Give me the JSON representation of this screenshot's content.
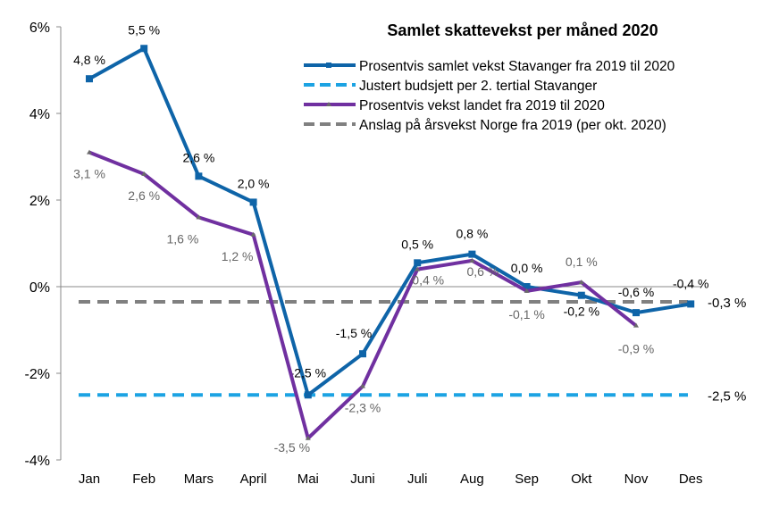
{
  "chart_data": {
    "type": "line",
    "title": "Samlet skattevekst per måned 2020",
    "categories": [
      "Jan",
      "Feb",
      "Mars",
      "April",
      "Mai",
      "Juni",
      "Juli",
      "Aug",
      "Sep",
      "Okt",
      "Nov",
      "Des"
    ],
    "ylim": [
      -4,
      6
    ],
    "yticks": [
      -4,
      -2,
      0,
      2,
      4,
      6
    ],
    "ytick_labels": [
      "-4%",
      "-2%",
      "0%",
      "2%",
      "4%",
      "6%"
    ],
    "legend_placement": "top-right",
    "grid": false,
    "series": [
      {
        "name": "Prosentvis samlet vekst Stavanger fra 2019 til 2020",
        "color": "#0E64A8",
        "style": "solid-square-markers",
        "values": [
          4.8,
          5.5,
          2.55,
          1.95,
          -2.5,
          -1.55,
          0.55,
          0.75,
          0.0,
          -0.2,
          -0.6,
          -0.4
        ],
        "labels": [
          "4,8 %",
          "5,5 %",
          "2,6 %",
          "2,0 %",
          "-2,5 %",
          "-1,5 %",
          "0,5 %",
          "0,8 %",
          "0,0 %",
          "-0,2 %",
          "-0,6 %",
          "-0,4 %"
        ]
      },
      {
        "name": "Justert budsjett per 2. tertial Stavanger",
        "color": "#1CA3E3",
        "style": "dashed",
        "constant": -2.5,
        "label": "-2,5 %"
      },
      {
        "name": "Prosentvis vekst landet fra 2019 til 2020",
        "color": "#7030A0",
        "style": "solid-triangle-markers",
        "values": [
          3.1,
          2.6,
          1.6,
          1.2,
          -3.5,
          -2.3,
          0.4,
          0.6,
          -0.1,
          0.1,
          -0.9,
          null
        ],
        "labels": [
          "3,1 %",
          "2,6 %",
          "1,6 %",
          "1,2 %",
          "-3,5 %",
          "-2,3 %",
          "0,4 %",
          "0,6 %",
          "-0,1 %",
          "0,1 %",
          "-0,9 %",
          ""
        ]
      },
      {
        "name": "Anslag på årsvekst Norge fra 2019 (per okt. 2020)",
        "color": "#808080",
        "style": "dashed",
        "constant": -0.35,
        "label": "-0,3 %"
      }
    ]
  }
}
